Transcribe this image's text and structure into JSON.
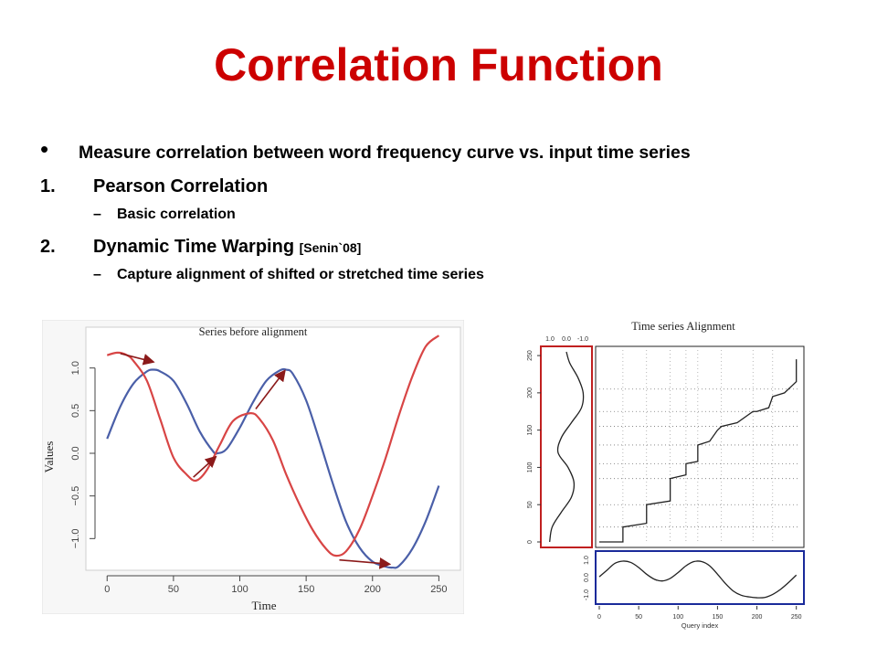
{
  "slide": {
    "title": "Correlation Function",
    "bullet_symbol": "•",
    "bullet": "Measure correlation between word frequency curve vs. input time series",
    "items": [
      {
        "num": "1.",
        "label": "Pearson Correlation",
        "cite": "",
        "sub": "Basic correlation"
      },
      {
        "num": "2.",
        "label": "Dynamic Time Warping",
        "cite": "[Senin`08]",
        "sub": "Capture alignment of shifted or stretched time series"
      }
    ],
    "dash": "–"
  },
  "chart_data": [
    {
      "type": "line",
      "title": "Series before alignment",
      "xlabel": "Time",
      "ylabel": "Values",
      "xlim": [
        -5,
        258
      ],
      "ylim": [
        -1.35,
        1.35
      ],
      "xticks": [
        0,
        50,
        100,
        150,
        200,
        250
      ],
      "yticks": [
        -1.0,
        -0.5,
        0.0,
        0.5,
        1.0
      ],
      "ytick_labels": [
        "−1.0",
        "−0.5",
        "0.0",
        "0.5",
        "1.0"
      ],
      "series": [
        {
          "color": "#4a5fa8",
          "x": [
            0,
            10,
            20,
            30,
            35,
            40,
            50,
            60,
            70,
            80,
            83,
            90,
            100,
            110,
            120,
            130,
            135,
            140,
            150,
            160,
            170,
            180,
            190,
            200,
            210,
            215,
            220,
            230,
            240,
            250
          ],
          "y": [
            0.17,
            0.55,
            0.82,
            0.96,
            0.98,
            0.96,
            0.85,
            0.58,
            0.25,
            0.02,
            0.0,
            0.05,
            0.3,
            0.6,
            0.85,
            0.97,
            0.98,
            0.93,
            0.62,
            0.15,
            -0.35,
            -0.8,
            -1.1,
            -1.27,
            -1.33,
            -1.34,
            -1.32,
            -1.12,
            -0.8,
            -0.38
          ]
        },
        {
          "color": "#d84545",
          "x": [
            0,
            8,
            15,
            20,
            30,
            40,
            50,
            60,
            67,
            75,
            85,
            95,
            108,
            115,
            125,
            135,
            145,
            155,
            165,
            172,
            180,
            190,
            200,
            210,
            220,
            230,
            240,
            250
          ],
          "y": [
            1.15,
            1.18,
            1.15,
            1.08,
            0.85,
            0.4,
            -0.05,
            -0.25,
            -0.32,
            -0.2,
            0.1,
            0.38,
            0.47,
            0.4,
            0.15,
            -0.25,
            -0.6,
            -0.9,
            -1.12,
            -1.2,
            -1.15,
            -0.9,
            -0.5,
            -0.05,
            0.45,
            0.9,
            1.25,
            1.38
          ]
        }
      ],
      "arrows": [
        {
          "from": [
            10,
            1.17
          ],
          "to": [
            35,
            1.07
          ]
        },
        {
          "from": [
            65,
            -0.28
          ],
          "to": [
            82,
            -0.04
          ]
        },
        {
          "from": [
            112,
            0.52
          ],
          "to": [
            134,
            0.97
          ]
        },
        {
          "from": [
            175,
            -1.25
          ],
          "to": [
            213,
            -1.3
          ]
        }
      ],
      "arrow_color": "#8b1a1a"
    },
    {
      "type": "line",
      "title": "Time series Alignment",
      "xlabel": "Query index",
      "xlim": [
        0,
        255
      ],
      "xticks": [
        0,
        50,
        100,
        150,
        200,
        250
      ],
      "yticks": [
        0,
        50,
        100,
        150,
        200,
        250
      ],
      "marginal_xticks": [
        "1.0",
        "0.0",
        "-1.0"
      ],
      "bottom_yticks": [
        "1.0",
        "0.0",
        "-1.0"
      ],
      "ylim": [
        0,
        255
      ],
      "warping_path": {
        "x": [
          0,
          30,
          30,
          60,
          60,
          90,
          90,
          110,
          110,
          125,
          125,
          140,
          150,
          155,
          175,
          195,
          200,
          215,
          220,
          235,
          245,
          250,
          250
        ],
        "y": [
          0,
          0,
          20,
          25,
          50,
          55,
          85,
          90,
          105,
          108,
          130,
          135,
          150,
          155,
          160,
          175,
          175,
          180,
          195,
          200,
          210,
          215,
          245
        ]
      },
      "dotted_levels": [
        20,
        50,
        85,
        105,
        130,
        155,
        175,
        205
      ],
      "dotted_cols": [
        30,
        60,
        90,
        110,
        125,
        155,
        195,
        220
      ],
      "query_series": {
        "x": [
          0,
          10,
          20,
          30,
          40,
          50,
          60,
          70,
          80,
          90,
          100,
          110,
          120,
          130,
          140,
          150,
          160,
          170,
          180,
          190,
          200,
          210,
          220,
          230,
          240,
          250
        ],
        "y": [
          0.05,
          0.45,
          0.85,
          0.98,
          0.9,
          0.6,
          0.2,
          -0.1,
          -0.2,
          -0.05,
          0.3,
          0.7,
          0.95,
          0.95,
          0.7,
          0.2,
          -0.35,
          -0.8,
          -1.05,
          -1.15,
          -1.2,
          -1.18,
          -1.0,
          -0.7,
          -0.3,
          0.15
        ]
      },
      "reference_series": {
        "y": [
          0,
          20,
          40,
          60,
          80,
          100,
          120,
          140,
          160,
          180,
          200,
          220,
          240,
          255
        ],
        "x": [
          1.0,
          0.85,
          0.3,
          -0.3,
          -0.45,
          -0.1,
          0.5,
          0.3,
          -0.3,
          -0.9,
          -1.0,
          -0.7,
          -0.2,
          0.0
        ]
      },
      "left_box_color": "#c02020",
      "bottom_box_color": "#1a2a9a"
    }
  ]
}
